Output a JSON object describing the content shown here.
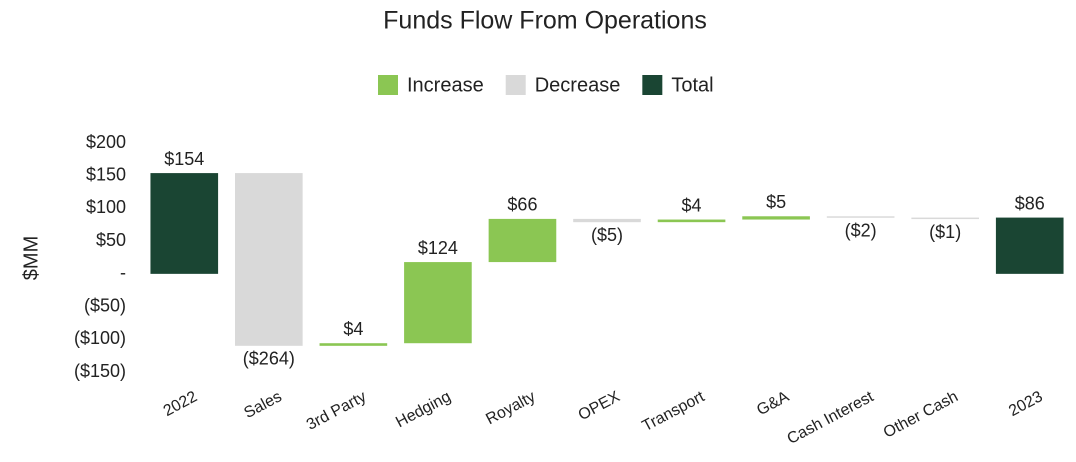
{
  "chart_data": {
    "type": "waterfall",
    "title": "Funds Flow From Operations",
    "y_label": "$MM",
    "categories": [
      "2022",
      "Sales",
      "3rd Party",
      "Hedging",
      "Royalty",
      "OPEX",
      "Transport",
      "G&A",
      "Cash Interest",
      "Other Cash",
      "2023"
    ],
    "values": [
      154,
      -264,
      4,
      124,
      66,
      -5,
      4,
      5,
      -2,
      -1,
      86
    ],
    "value_labels": [
      "$154",
      "($264)",
      "$4",
      "$124",
      "$66",
      "($5)",
      "$4",
      "$5",
      "($2)",
      "($1)",
      "$86"
    ],
    "colors": [
      "#1a4533",
      "#d9d9d9",
      "#8bc653",
      "#8bc653",
      "#8bc653",
      "#d9d9d9",
      "#8bc653",
      "#8bc653",
      "#d9d9d9",
      "#d9d9d9",
      "#1a4533"
    ],
    "legend": [
      {
        "name": "Increase",
        "color": "#8bc653"
      },
      {
        "name": "Decrease",
        "color": "#d9d9d9"
      },
      {
        "name": "Total",
        "color": "#1a4533"
      }
    ],
    "ylim": [
      -150,
      200
    ],
    "yticks": [
      {
        "value": -150,
        "label": "($150)"
      },
      {
        "value": -100,
        "label": "($100)"
      },
      {
        "value": -50,
        "label": "($50)"
      },
      {
        "value": 0,
        "label": "-"
      },
      {
        "value": 50,
        "label": "$50"
      },
      {
        "value": 100,
        "label": "$100"
      },
      {
        "value": 150,
        "label": "$150"
      },
      {
        "value": 200,
        "label": "$200"
      }
    ]
  }
}
